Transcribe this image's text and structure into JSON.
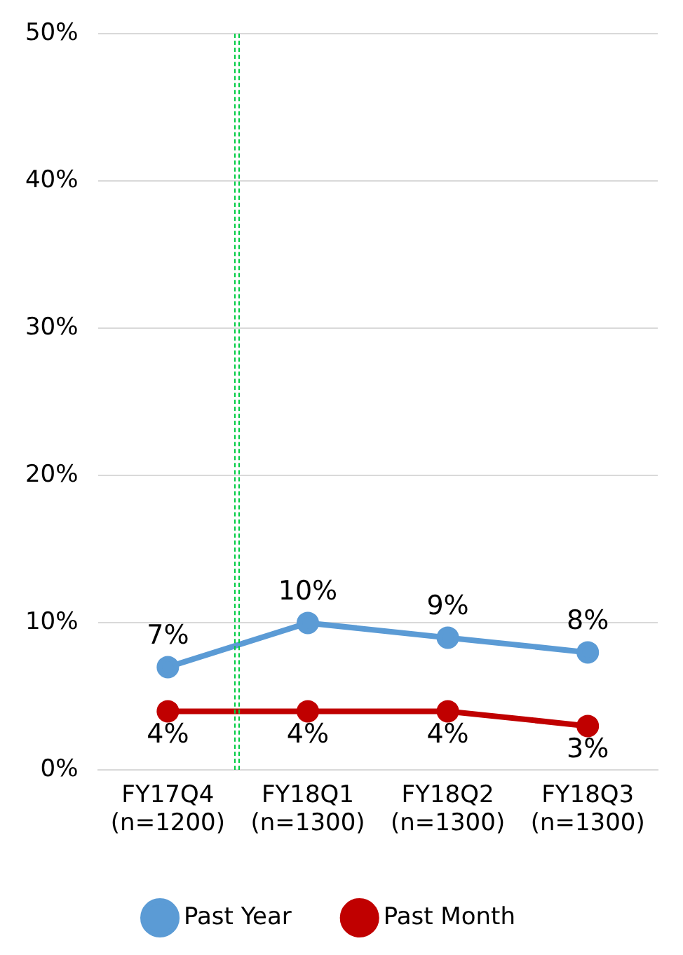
{
  "chart_data": {
    "type": "line",
    "categories": [
      "FY17Q4\n(n=1200)",
      "FY18Q1\n(n=1300)",
      "FY18Q2\n(n=1300)",
      "FY18Q3\n(n=1300)"
    ],
    "series": [
      {
        "name": "Past Year",
        "color": "#5b9bd5",
        "values": [
          7,
          10,
          9,
          8
        ],
        "value_labels": [
          "7%",
          "10%",
          "9%",
          "8%"
        ]
      },
      {
        "name": "Past Month",
        "color": "#c00000",
        "values": [
          4,
          4,
          4,
          3
        ],
        "value_labels": [
          "4%",
          "4%",
          "4%",
          "3%"
        ]
      }
    ],
    "ylim": [
      0,
      50
    ],
    "yticks": [
      {
        "value": 0,
        "label": "0%"
      },
      {
        "value": 10,
        "label": "10%"
      },
      {
        "value": 20,
        "label": "20%"
      },
      {
        "value": 30,
        "label": "30%"
      },
      {
        "value": 40,
        "label": "40%"
      },
      {
        "value": 50,
        "label": "50%"
      }
    ],
    "grid": "y",
    "legend": "bottom",
    "marker": "circle",
    "line_style": "solid"
  }
}
